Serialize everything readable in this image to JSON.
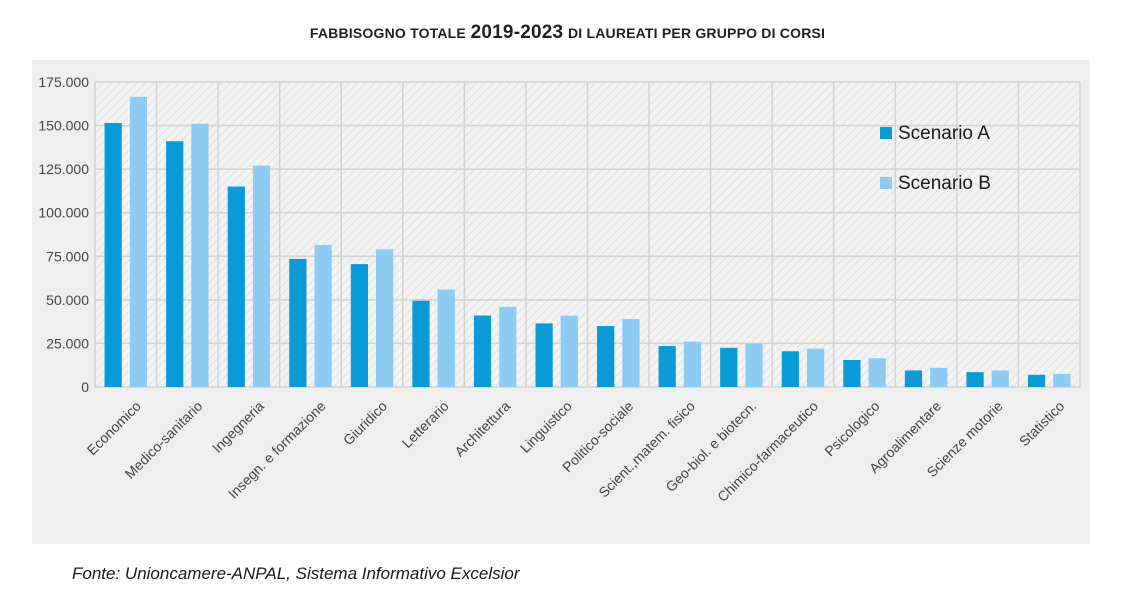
{
  "title": {
    "part1": "Fabbisogno totale",
    "years": "2019-2023",
    "part2": "di laureati per gruppo di corsi"
  },
  "source": "Fonte: Unioncamere-ANPAL, Sistema Informativo Excelsior",
  "colors": {
    "scenario_a": "#0a9bd6",
    "scenario_b": "#8ecbf3",
    "panel": "#efefef",
    "grid": "#d2d2d2"
  },
  "chart_data": {
    "type": "bar",
    "title": "Fabbisogno totale 2019-2023 di laureati per gruppo di corsi",
    "xlabel": "",
    "ylabel": "",
    "ylim": [
      0,
      175000
    ],
    "yticks": [
      "0",
      "25.000",
      "50.000",
      "75.000",
      "100.000",
      "125.000",
      "150.000",
      "175.000"
    ],
    "grid": true,
    "legend_position": "top-right",
    "categories": [
      "Economico",
      "Medico-sanitario",
      "Ingegneria",
      "Insegn. e formazione",
      "Giuridico",
      "Letterario",
      "Architettura",
      "Linguistico",
      "Politico-sociale",
      "Scient.,matem. fisico",
      "Geo-biol. e biotecn.",
      "Chimico-farmaceutico",
      "Psicologico",
      "Agroalimentare",
      "Scienze motorie",
      "Statistico"
    ],
    "series": [
      {
        "name": "Scenario A",
        "values": [
          151500,
          141000,
          115000,
          73500,
          70500,
          49500,
          41000,
          36500,
          35000,
          23500,
          22500,
          20500,
          15500,
          9500,
          8500,
          7000
        ]
      },
      {
        "name": "Scenario B",
        "values": [
          166500,
          151000,
          127000,
          81500,
          79000,
          56000,
          46000,
          41000,
          39000,
          26000,
          25000,
          22000,
          16500,
          11000,
          9500,
          7500
        ]
      }
    ]
  }
}
